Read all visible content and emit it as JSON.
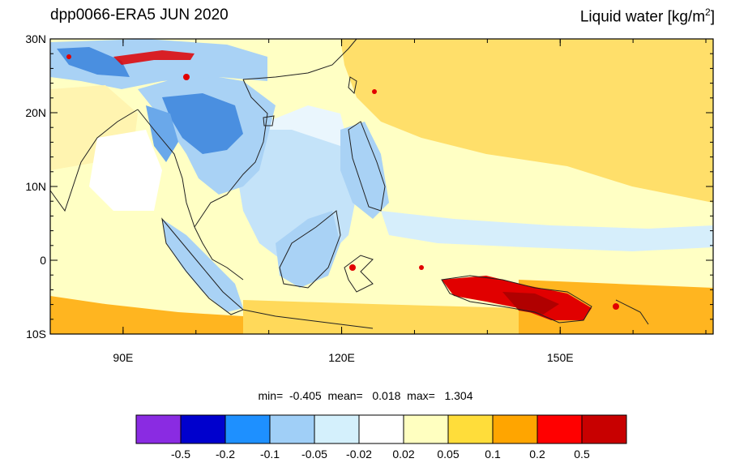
{
  "title_left": "dpp0066-ERA5 JUN 2020",
  "title_right_prefix": "Liquid water  [kg/m",
  "title_right_sup": "2",
  "title_right_suffix": "]",
  "map": {
    "lon_range": [
      80,
      171
    ],
    "lat_range": [
      -10,
      30
    ],
    "lat_ticks": [
      {
        "value": 30,
        "label": "30N"
      },
      {
        "value": 20,
        "label": "20N"
      },
      {
        "value": 10,
        "label": "10N"
      },
      {
        "value": 0,
        "label": "0"
      },
      {
        "value": -10,
        "label": "10S"
      }
    ],
    "lon_ticks": [
      {
        "value": 90,
        "label": "90E"
      },
      {
        "value": 120,
        "label": "120E"
      },
      {
        "value": 150,
        "label": "150E"
      }
    ]
  },
  "stats": {
    "text": "min=  -0.405  mean=   0.018  max=   1.304",
    "min": -0.405,
    "mean": 0.018,
    "max": 1.304
  },
  "colorbar": {
    "colors": [
      "#8a2be2",
      "#0000cd",
      "#1e90ff",
      "#a0cff7",
      "#d4f0fc",
      "#ffffff",
      "#ffffc0",
      "#ffdd3a",
      "#ffa500",
      "#ff0000",
      "#c80000"
    ],
    "labels": [
      "-0.5",
      "-0.2",
      "-0.1",
      "-0.05",
      "-0.02",
      "0.02",
      "0.05",
      "0.1",
      "0.2",
      "0.5"
    ]
  },
  "colors": {
    "ocean_base": "#ffffc4",
    "land_blue": "#a9d2f5",
    "deep_blue": "#4a8fe0",
    "light_blue": "#d6eefb",
    "orange": "#ffb520",
    "yellow": "#ffd95a",
    "red": "#e10000"
  }
}
